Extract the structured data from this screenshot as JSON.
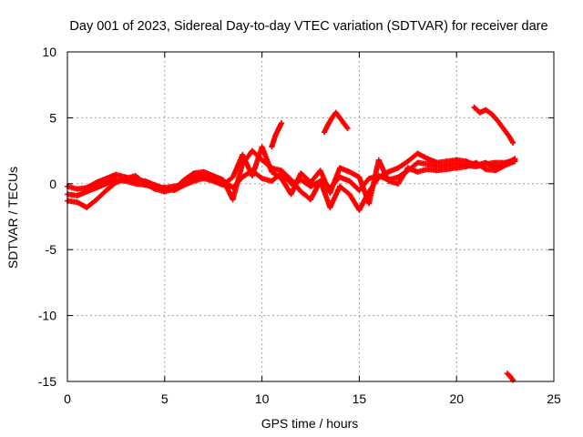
{
  "chart_data": {
    "type": "scatter",
    "title": "Day 001 of 2023, Sidereal Day-to-day VTEC variation (SDTVAR) for receiver dare",
    "xlabel": "GPS time / hours",
    "ylabel": "SDTVAR / TECUs",
    "xlim": [
      0,
      25
    ],
    "ylim": [
      -15,
      10
    ],
    "xticks": [
      0,
      5,
      10,
      15,
      20,
      25
    ],
    "xtick_labels": [
      "0",
      "5",
      "10",
      "15",
      "20",
      "25"
    ],
    "yticks": [
      10,
      5,
      0,
      -5,
      -10,
      -15
    ],
    "ytick_labels": [
      "10",
      "5",
      "0",
      "-5",
      "-10",
      "-15"
    ],
    "grid": true,
    "marker": "+",
    "series": [
      {
        "name": "SDTVAR",
        "color": "#ff0000",
        "tracks": [
          {
            "x": [
              0.0,
              0.5,
              1.0,
              1.5,
              2.0,
              2.5,
              3.0,
              3.5,
              4.0,
              4.5,
              5.0,
              5.5,
              6.0,
              6.5,
              7.0,
              7.5,
              8.0,
              8.5,
              9.0,
              9.5,
              10.0,
              10.5,
              11.0,
              11.5,
              12.0,
              12.5,
              13.0,
              13.5,
              14.0,
              14.5,
              15.0,
              15.5,
              16.0,
              16.5,
              17.0,
              17.5,
              18.0,
              18.5,
              19.0,
              19.5,
              20.0,
              20.5,
              21.0,
              21.5,
              22.0,
              22.5,
              23.0
            ],
            "y": [
              -0.8,
              -0.9,
              -0.6,
              -0.3,
              0.0,
              0.3,
              0.2,
              0.0,
              -0.1,
              -0.2,
              -0.3,
              -0.2,
              0.0,
              0.4,
              0.7,
              0.4,
              0.2,
              -0.3,
              0.5,
              1.0,
              0.4,
              0.2,
              0.8,
              0.0,
              0.3,
              -0.2,
              0.2,
              -0.3,
              0.5,
              0.2,
              -0.5,
              0.4,
              0.6,
              0.3,
              0.5,
              1.0,
              1.6,
              1.5,
              1.3,
              1.4,
              1.5,
              1.4,
              1.3,
              1.5,
              1.6,
              1.6,
              1.8
            ]
          },
          {
            "x": [
              0.0,
              0.5,
              1.0,
              1.5,
              2.0,
              2.5,
              3.0,
              3.5,
              4.0,
              4.5,
              5.0,
              5.5,
              6.0,
              6.5,
              7.0,
              7.5,
              8.0,
              8.5,
              9.0,
              9.5,
              10.0,
              10.5,
              11.0,
              11.5,
              12.0,
              12.5,
              13.0,
              13.5,
              14.0,
              14.5,
              15.0,
              15.5,
              16.0,
              16.5,
              17.0,
              17.5,
              18.0,
              18.5,
              19.0,
              19.5,
              20.0,
              20.5,
              21.0,
              21.5,
              22.0,
              22.5,
              23.0
            ],
            "y": [
              -1.3,
              -1.4,
              -1.8,
              -1.2,
              -0.5,
              0.1,
              0.4,
              0.6,
              0.0,
              -0.4,
              -0.6,
              -0.4,
              0.3,
              0.8,
              0.9,
              0.6,
              0.3,
              -1.2,
              1.5,
              2.5,
              1.8,
              1.2,
              1.0,
              0.3,
              -0.6,
              -1.2,
              0.2,
              -1.8,
              -0.2,
              -0.8,
              -2.0,
              -0.6,
              0.5,
              0.9,
              1.2,
              1.7,
              2.3,
              1.9,
              1.6,
              1.7,
              1.8,
              1.7,
              1.4,
              1.6,
              1.2,
              1.5,
              1.9
            ]
          },
          {
            "x": [
              0.0,
              0.5,
              1.0,
              1.5,
              2.0,
              2.5,
              3.0,
              3.5,
              4.0,
              4.5,
              5.0,
              5.5,
              6.0,
              6.5,
              7.0,
              7.5,
              8.0,
              8.5,
              9.0,
              9.5,
              10.0,
              10.5,
              11.0,
              11.5,
              12.0,
              12.5,
              13.0,
              13.5,
              14.0,
              14.5,
              15.0,
              15.5,
              16.0,
              16.5,
              17.0,
              17.5,
              18.0,
              18.5,
              19.0,
              19.5,
              20.0,
              20.5,
              21.0,
              21.5,
              22.0,
              22.5,
              23.0
            ],
            "y": [
              -0.2,
              -0.4,
              -0.3,
              0.1,
              0.4,
              0.7,
              0.5,
              0.3,
              0.2,
              -0.1,
              -0.4,
              -0.5,
              -0.1,
              0.2,
              0.4,
              0.2,
              -0.1,
              0.5,
              2.2,
              0.6,
              2.8,
              0.9,
              0.4,
              -0.8,
              0.8,
              0.1,
              1.0,
              -0.7,
              1.2,
              0.9,
              0.5,
              -1.5,
              1.8,
              0.2,
              0.0,
              1.2,
              0.9,
              1.1,
              1.0,
              1.1,
              1.2,
              1.3,
              1.6,
              1.1,
              1.0,
              1.4,
              1.7
            ]
          },
          {
            "x": [
              10.5,
              10.7,
              10.9,
              11.0
            ],
            "y": [
              2.8,
              3.7,
              4.3,
              4.6
            ]
          },
          {
            "x": [
              13.2,
              13.4,
              13.6,
              13.8,
              14.0,
              14.2,
              14.4
            ],
            "y": [
              3.9,
              4.5,
              5.0,
              5.4,
              5.0,
              4.6,
              4.2
            ]
          },
          {
            "x": [
              20.9,
              21.2,
              21.5,
              21.8,
              22.1,
              22.4,
              22.7,
              22.9
            ],
            "y": [
              5.8,
              5.4,
              5.6,
              5.3,
              4.8,
              4.2,
              3.6,
              3.1
            ]
          },
          {
            "x": [
              22.6,
              22.75,
              22.9
            ],
            "y": [
              -14.4,
              -14.6,
              -14.9
            ]
          }
        ]
      }
    ]
  }
}
